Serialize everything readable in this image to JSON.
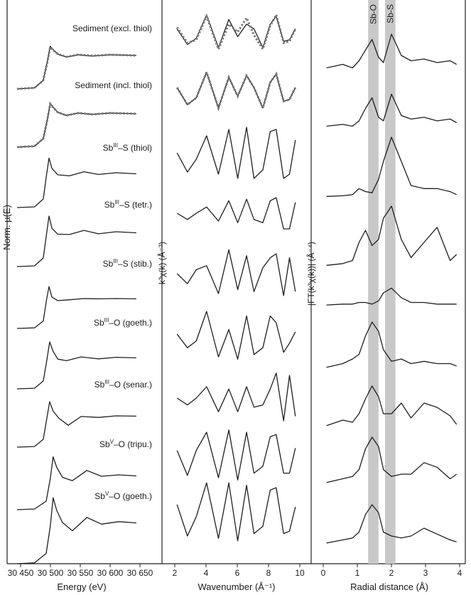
{
  "colors": {
    "curve": "#1f1f1f",
    "fit": "#777777",
    "band": "#c8c8c8",
    "frame": "#222222"
  },
  "chart_data": [
    {
      "type": "line",
      "panel": "xanes",
      "xlabel": "Energy (eV)",
      "ylabel": "Norm. µ(E)",
      "xlim": [
        30440,
        30650
      ],
      "x_ticks": [
        "30 450",
        "30 500",
        "30 550",
        "30 600",
        "30 650"
      ],
      "x_tick_values": [
        30450,
        30500,
        30550,
        30600,
        30650
      ],
      "grid": false,
      "legend": "none",
      "stack_labels": [
        {
          "pre": "Sediment (excl. thiol)",
          "sup": "",
          "post": ""
        },
        {
          "pre": "Sediment (incl. thiol)",
          "sup": "",
          "post": ""
        },
        {
          "pre": "Sb",
          "sup": "III",
          "post": "–S (thiol)"
        },
        {
          "pre": "Sb",
          "sup": "III",
          "post": "–S (tetr.)"
        },
        {
          "pre": "Sb",
          "sup": "III",
          "post": "–S (stib.)"
        },
        {
          "pre": "Sb",
          "sup": "III",
          "post": "–O (goeth.)"
        },
        {
          "pre": "Sb",
          "sup": "III",
          "post": "–O (senar.)"
        },
        {
          "pre": "Sb",
          "sup": "V",
          "post": "–O (tripu.)"
        },
        {
          "pre": "Sb",
          "sup": "V",
          "post": "–O (goeth.)"
        }
      ],
      "series": [
        {
          "x": [
            30440,
            30470,
            30485,
            30492,
            30497,
            30502,
            30510,
            30525,
            30545,
            30570,
            30600,
            30645
          ],
          "values": [
            0.0,
            0.03,
            0.25,
            0.8,
            1.25,
            1.15,
            1.02,
            0.93,
            1.0,
            0.96,
            1.0,
            0.98
          ],
          "fit_values": [
            0.0,
            0.03,
            0.25,
            0.78,
            1.22,
            1.13,
            1.02,
            0.94,
            1.0,
            0.97,
            1.0,
            0.98
          ]
        },
        {
          "x": [
            30440,
            30470,
            30485,
            30492,
            30497,
            30502,
            30510,
            30525,
            30545,
            30570,
            30600,
            30645
          ],
          "values": [
            0.0,
            0.03,
            0.25,
            0.8,
            1.28,
            1.17,
            1.02,
            0.93,
            1.0,
            0.96,
            1.0,
            0.98
          ],
          "fit_values": [
            0.0,
            0.03,
            0.25,
            0.8,
            1.27,
            1.16,
            1.02,
            0.93,
            1.0,
            0.96,
            1.0,
            0.98
          ]
        },
        {
          "x": [
            30440,
            30470,
            30485,
            30491,
            30495,
            30500,
            30510,
            30530,
            30555,
            30580,
            30610,
            30645
          ],
          "values": [
            0.0,
            0.02,
            0.25,
            1.0,
            1.45,
            1.15,
            0.96,
            0.93,
            1.05,
            0.97,
            1.02,
            0.99
          ]
        },
        {
          "x": [
            30440,
            30470,
            30485,
            30491,
            30495,
            30500,
            30510,
            30530,
            30555,
            30580,
            30610,
            30645
          ],
          "values": [
            0.0,
            0.02,
            0.25,
            1.0,
            1.48,
            1.12,
            0.95,
            0.94,
            1.06,
            0.96,
            1.02,
            0.99
          ]
        },
        {
          "x": [
            30440,
            30470,
            30485,
            30491,
            30495,
            30500,
            30510,
            30530,
            30555,
            30580,
            30610,
            30645
          ],
          "values": [
            0.0,
            0.02,
            0.25,
            1.0,
            1.4,
            1.05,
            0.93,
            0.96,
            1.0,
            0.99,
            1.0,
            0.99
          ]
        },
        {
          "x": [
            30440,
            30470,
            30485,
            30491,
            30496,
            30502,
            30510,
            30525,
            30550,
            30580,
            30610,
            30645
          ],
          "values": [
            0.0,
            0.02,
            0.25,
            0.9,
            1.5,
            1.2,
            0.95,
            0.9,
            1.02,
            0.96,
            1.01,
            0.99
          ]
        },
        {
          "x": [
            30440,
            30470,
            30485,
            30491,
            30496,
            30502,
            30512,
            30528,
            30550,
            30580,
            30610,
            30645
          ],
          "values": [
            0.0,
            0.02,
            0.25,
            0.9,
            1.45,
            1.15,
            0.92,
            0.7,
            0.98,
            0.95,
            1.0,
            0.99
          ]
        },
        {
          "x": [
            30440,
            30470,
            30490,
            30497,
            30502,
            30508,
            30518,
            30535,
            30560,
            30585,
            30615,
            30645
          ],
          "values": [
            0.0,
            0.02,
            0.25,
            0.9,
            1.55,
            1.25,
            0.95,
            0.85,
            1.15,
            0.98,
            1.02,
            0.99
          ]
        },
        {
          "x": [
            30440,
            30470,
            30490,
            30497,
            30502,
            30508,
            30518,
            30535,
            30560,
            30585,
            30615,
            30645
          ],
          "values": [
            0.0,
            0.02,
            0.25,
            0.9,
            1.6,
            1.3,
            1.0,
            0.8,
            1.12,
            0.96,
            1.02,
            0.99
          ]
        }
      ]
    },
    {
      "type": "line",
      "panel": "exafs",
      "xlabel": "Wavenumber (Å⁻¹)",
      "ylabel": "k³χ(k) (Å⁻³)",
      "xlim": [
        1.8,
        10.2
      ],
      "x_ticks": [
        "2",
        "4",
        "6",
        "8",
        "10"
      ],
      "x_tick_values": [
        2,
        4,
        6,
        8,
        10
      ],
      "grid": false,
      "legend": "none",
      "series": [
        {
          "x": [
            2.0,
            2.7,
            3.3,
            4.0,
            4.8,
            5.5,
            6.1,
            6.7,
            7.2,
            7.8,
            8.3,
            8.7,
            9.2,
            9.6,
            10.0
          ],
          "values": [
            0.2,
            -0.8,
            -0.4,
            1.1,
            -1.0,
            0.8,
            -0.3,
            0.5,
            0.2,
            -1.0,
            0.5,
            1.0,
            -0.6,
            -0.5,
            0.2
          ],
          "fit_values": [
            0.3,
            -0.7,
            -0.5,
            1.0,
            -1.1,
            0.5,
            0.0,
            0.9,
            -0.2,
            -1.1,
            0.4,
            1.1,
            -0.7,
            -0.6,
            0.2
          ]
        },
        {
          "x": [
            2.0,
            2.7,
            3.3,
            4.0,
            4.8,
            5.5,
            6.1,
            6.7,
            7.2,
            7.8,
            8.3,
            8.7,
            9.2,
            9.6,
            10.0
          ],
          "values": [
            0.2,
            -0.8,
            -0.4,
            1.1,
            -1.0,
            0.8,
            -0.3,
            0.9,
            0.2,
            -1.0,
            0.5,
            1.0,
            -0.6,
            -0.5,
            0.2
          ],
          "fit_values": [
            0.2,
            -0.8,
            -0.4,
            1.1,
            -1.0,
            0.8,
            -0.3,
            0.9,
            0.2,
            -1.0,
            0.5,
            1.0,
            -0.6,
            -0.5,
            0.2
          ]
        },
        {
          "x": [
            2.0,
            2.7,
            3.3,
            4.0,
            4.8,
            5.5,
            6.1,
            6.7,
            7.2,
            7.8,
            8.3,
            8.7,
            9.2,
            9.6,
            10.0
          ],
          "values": [
            0.0,
            -0.9,
            -0.3,
            0.8,
            -1.0,
            1.1,
            -1.2,
            1.2,
            -1.2,
            -0.8,
            1.0,
            1.1,
            -1.2,
            -1.0,
            0.6
          ]
        },
        {
          "x": [
            2.0,
            2.7,
            3.3,
            4.0,
            4.8,
            5.5,
            6.1,
            6.7,
            7.2,
            7.8,
            8.3,
            8.7,
            9.2,
            9.6,
            10.0
          ],
          "values": [
            0.0,
            -0.4,
            0.0,
            0.4,
            -0.5,
            0.8,
            -0.6,
            0.9,
            -0.4,
            -0.6,
            0.8,
            1.0,
            -1.0,
            -1.0,
            0.7
          ]
        },
        {
          "x": [
            2.0,
            2.7,
            3.3,
            4.0,
            4.8,
            5.5,
            6.1,
            6.7,
            7.2,
            7.8,
            8.3,
            8.7,
            9.2,
            9.6,
            10.0
          ],
          "values": [
            0.0,
            -0.5,
            0.2,
            0.4,
            -1.0,
            1.2,
            -0.8,
            0.9,
            -0.9,
            0.3,
            0.8,
            1.0,
            -1.1,
            0.8,
            -0.9
          ]
        },
        {
          "x": [
            2.0,
            2.7,
            3.3,
            4.0,
            4.8,
            5.5,
            6.1,
            6.7,
            7.2,
            7.8,
            8.3,
            8.7,
            9.2,
            9.6,
            10.0
          ],
          "values": [
            0.0,
            -0.6,
            -0.3,
            1.0,
            -1.0,
            0.2,
            -1.1,
            0.8,
            -0.9,
            -0.6,
            0.8,
            0.5,
            -0.8,
            -0.4,
            0.1
          ]
        },
        {
          "x": [
            2.0,
            2.7,
            3.3,
            4.0,
            4.8,
            5.5,
            6.1,
            6.7,
            7.2,
            7.8,
            8.3,
            8.7,
            9.2,
            9.6,
            10.0
          ],
          "values": [
            0.0,
            -0.3,
            0.0,
            0.5,
            -0.6,
            0.4,
            -0.6,
            0.5,
            -0.4,
            -0.3,
            0.4,
            1.1,
            -1.0,
            1.0,
            -0.8
          ]
        },
        {
          "x": [
            2.0,
            2.7,
            3.3,
            4.0,
            4.8,
            5.5,
            6.1,
            6.7,
            7.2,
            7.8,
            8.3,
            8.7,
            9.2,
            9.6,
            10.0
          ],
          "values": [
            0.2,
            -0.9,
            0.2,
            1.0,
            -1.0,
            1.1,
            -1.1,
            1.0,
            -0.8,
            -0.5,
            0.8,
            0.9,
            -0.8,
            -0.8,
            0.3
          ]
        },
        {
          "x": [
            2.0,
            2.7,
            3.3,
            4.0,
            4.8,
            5.5,
            6.1,
            6.7,
            7.2,
            7.8,
            8.3,
            8.7,
            9.2,
            9.6,
            10.0
          ],
          "values": [
            0.3,
            -1.0,
            -0.2,
            1.2,
            -1.1,
            1.2,
            -1.2,
            1.1,
            -0.9,
            -0.6,
            0.9,
            1.0,
            -0.9,
            -0.8,
            0.2
          ]
        }
      ]
    },
    {
      "type": "line",
      "panel": "fourier-transform",
      "xlabel": "Radial distance (Å)",
      "ylabel": "|FT(k³χ(k))| (Å⁻⁴)",
      "xlim": [
        -0.1,
        4.05
      ],
      "x_ticks": [
        "0",
        "1",
        "2",
        "3",
        "4"
      ],
      "x_tick_values": [
        0,
        1,
        2,
        3,
        4
      ],
      "grid": false,
      "legend": "none",
      "shaded_bands": [
        {
          "label": "Sb-O",
          "from": 1.28,
          "to": 1.6
        },
        {
          "label": "Sb-S",
          "from": 1.8,
          "to": 2.12
        }
      ],
      "series": [
        {
          "x": [
            0.0,
            0.5,
            0.8,
            1.0,
            1.2,
            1.4,
            1.6,
            1.75,
            2.0,
            2.3,
            2.6,
            3.0,
            3.4,
            3.8,
            4.0
          ],
          "values": [
            0.05,
            0.15,
            0.05,
            0.25,
            0.55,
            0.85,
            0.35,
            0.2,
            1.0,
            0.4,
            0.25,
            0.3,
            0.2,
            0.25,
            0.15
          ]
        },
        {
          "x": [
            0.0,
            0.5,
            0.8,
            1.0,
            1.2,
            1.4,
            1.6,
            1.75,
            2.0,
            2.3,
            2.6,
            3.0,
            3.4,
            3.8,
            4.0
          ],
          "values": [
            0.05,
            0.1,
            0.05,
            0.2,
            0.55,
            0.85,
            0.3,
            0.2,
            0.95,
            0.35,
            0.25,
            0.3,
            0.2,
            0.25,
            0.15
          ]
        },
        {
          "x": [
            0.0,
            0.5,
            0.8,
            1.0,
            1.2,
            1.4,
            1.6,
            1.75,
            2.0,
            2.3,
            2.6,
            3.0,
            3.4,
            3.8,
            4.0
          ],
          "values": [
            0.02,
            0.03,
            0.05,
            0.15,
            0.1,
            0.08,
            0.3,
            0.6,
            1.0,
            0.6,
            0.2,
            0.15,
            0.15,
            0.1,
            0.05
          ]
        },
        {
          "x": [
            0.0,
            0.5,
            0.8,
            1.0,
            1.2,
            1.4,
            1.6,
            1.75,
            2.0,
            2.3,
            2.6,
            3.0,
            3.4,
            3.8,
            4.0
          ],
          "values": [
            0.02,
            0.05,
            0.1,
            0.4,
            0.6,
            0.35,
            0.45,
            0.8,
            1.0,
            0.45,
            0.15,
            0.4,
            0.65,
            0.1,
            0.2
          ]
        },
        {
          "x": [
            0.0,
            0.5,
            0.8,
            1.0,
            1.2,
            1.4,
            1.6,
            1.75,
            2.0,
            2.3,
            2.6,
            3.0,
            3.4,
            3.8,
            4.0
          ],
          "values": [
            0.02,
            0.05,
            0.05,
            0.1,
            0.1,
            0.05,
            0.15,
            0.4,
            0.55,
            0.25,
            0.1,
            0.1,
            0.05,
            0.05,
            0.05
          ]
        },
        {
          "x": [
            0.0,
            0.5,
            0.8,
            1.0,
            1.2,
            1.4,
            1.6,
            1.75,
            2.0,
            2.3,
            2.6,
            3.0,
            3.4,
            3.8,
            4.0
          ],
          "values": [
            0.02,
            0.1,
            0.2,
            0.3,
            0.7,
            1.0,
            0.8,
            0.4,
            0.15,
            0.2,
            0.1,
            0.15,
            0.1,
            0.1,
            0.05
          ]
        },
        {
          "x": [
            0.0,
            0.5,
            0.8,
            1.0,
            1.2,
            1.4,
            1.6,
            1.75,
            2.0,
            2.3,
            2.6,
            3.0,
            3.4,
            3.8,
            4.0
          ],
          "values": [
            0.02,
            0.15,
            0.1,
            0.3,
            0.65,
            0.95,
            0.7,
            0.3,
            0.3,
            0.55,
            0.2,
            0.55,
            0.45,
            0.25,
            0.05
          ]
        },
        {
          "x": [
            0.0,
            0.5,
            0.8,
            1.0,
            1.2,
            1.4,
            1.6,
            1.75,
            2.0,
            2.3,
            2.6,
            3.0,
            3.4,
            3.8,
            4.0
          ],
          "values": [
            0.02,
            0.1,
            0.15,
            0.3,
            0.75,
            1.0,
            0.8,
            0.3,
            0.15,
            0.2,
            0.2,
            0.45,
            0.35,
            0.1,
            0.2
          ]
        },
        {
          "x": [
            0.0,
            0.5,
            0.8,
            1.0,
            1.2,
            1.4,
            1.6,
            1.75,
            2.0,
            2.3,
            2.6,
            3.0,
            3.4,
            3.8,
            4.0
          ],
          "values": [
            0.02,
            0.1,
            0.15,
            0.3,
            0.75,
            1.0,
            0.8,
            0.3,
            0.2,
            0.15,
            0.2,
            0.4,
            0.25,
            0.1,
            0.05
          ]
        }
      ]
    }
  ]
}
